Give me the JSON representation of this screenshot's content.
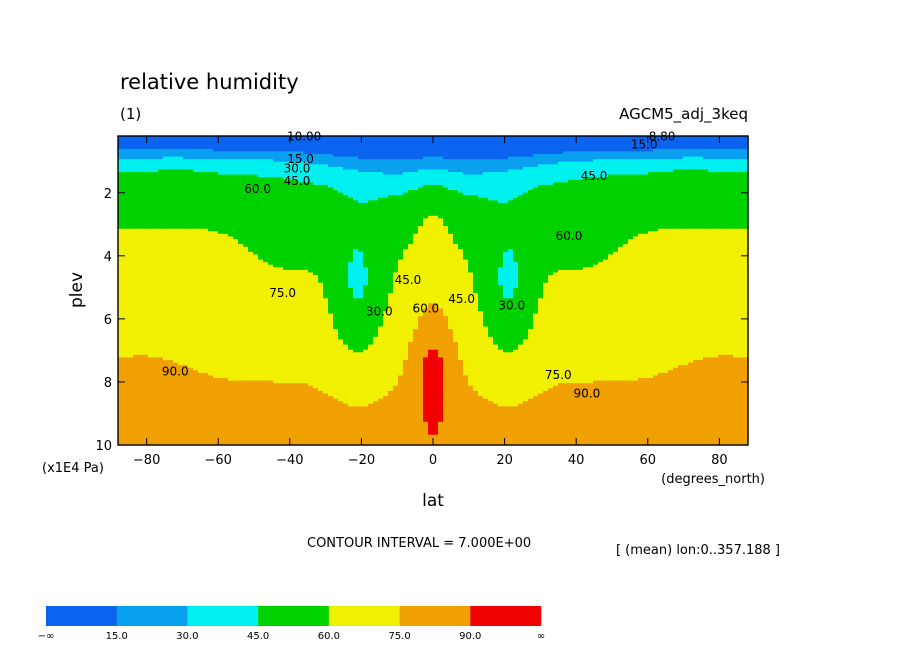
{
  "chart_data": {
    "type": "heatmap",
    "title": "relative humidity",
    "subtitle_left": "(1)",
    "subtitle_right": "AGCM5_adj_3keq",
    "xlabel": "lat",
    "xunits": "(degrees_north)",
    "ylabel": "plev",
    "yunits": "(x1E4 Pa)",
    "xlim": [
      -88,
      88
    ],
    "ylim": [
      10,
      0.2
    ],
    "y_inverted": true,
    "x_ticks": [
      -80,
      -60,
      -40,
      -20,
      0,
      20,
      40,
      60,
      80
    ],
    "x_tick_labels": [
      "−80",
      "−60",
      "−40",
      "−20",
      "0",
      "20",
      "40",
      "60",
      "80"
    ],
    "y_ticks": [
      2,
      4,
      6,
      8,
      10
    ],
    "y_tick_labels": [
      "2",
      "4",
      "6",
      "8",
      "10"
    ],
    "contour_interval_text": "CONTOUR INTERVAL = 7.000E+00",
    "mean_note": "[ (mean) lon:0..357.188 ]",
    "levels": [
      15,
      30,
      45,
      60,
      75,
      90
    ],
    "colors": [
      "#0a64f0",
      "#0aa0f0",
      "#00f0f0",
      "#00d200",
      "#f0f000",
      "#f0a000",
      "#f00000"
    ],
    "colorbar_labels": [
      "−∞",
      "15.0",
      "30.0",
      "45.0",
      "60.0",
      "75.0",
      "90.0",
      "∞"
    ],
    "contour_labels": [
      {
        "text": "10.00",
        "lat": -36,
        "plev": 0.35
      },
      {
        "text": "8.80",
        "lat": 64,
        "plev": 0.35
      },
      {
        "text": "15.0",
        "lat": 59,
        "plev": 0.6
      },
      {
        "text": "15.0",
        "lat": -37,
        "plev": 1.05
      },
      {
        "text": "30.0",
        "lat": -38,
        "plev": 1.35
      },
      {
        "text": "45.0",
        "lat": -38,
        "plev": 1.75
      },
      {
        "text": "60.0",
        "lat": -49,
        "plev": 2.0
      },
      {
        "text": "45.0",
        "lat": 45,
        "plev": 1.6
      },
      {
        "text": "60.0",
        "lat": 38,
        "plev": 3.5
      },
      {
        "text": "75.0",
        "lat": -42,
        "plev": 5.3
      },
      {
        "text": "30.0",
        "lat": -15,
        "plev": 5.9
      },
      {
        "text": "45.0",
        "lat": -7,
        "plev": 4.9
      },
      {
        "text": "60.0",
        "lat": -2,
        "plev": 5.8
      },
      {
        "text": "45.0",
        "lat": 8,
        "plev": 5.5
      },
      {
        "text": "30.0",
        "lat": 22,
        "plev": 5.7
      },
      {
        "text": "75.0",
        "lat": 35,
        "plev": 7.9
      },
      {
        "text": "90.0",
        "lat": -72,
        "plev": 7.8
      },
      {
        "text": "90.0",
        "lat": 43,
        "plev": 8.5
      }
    ]
  }
}
